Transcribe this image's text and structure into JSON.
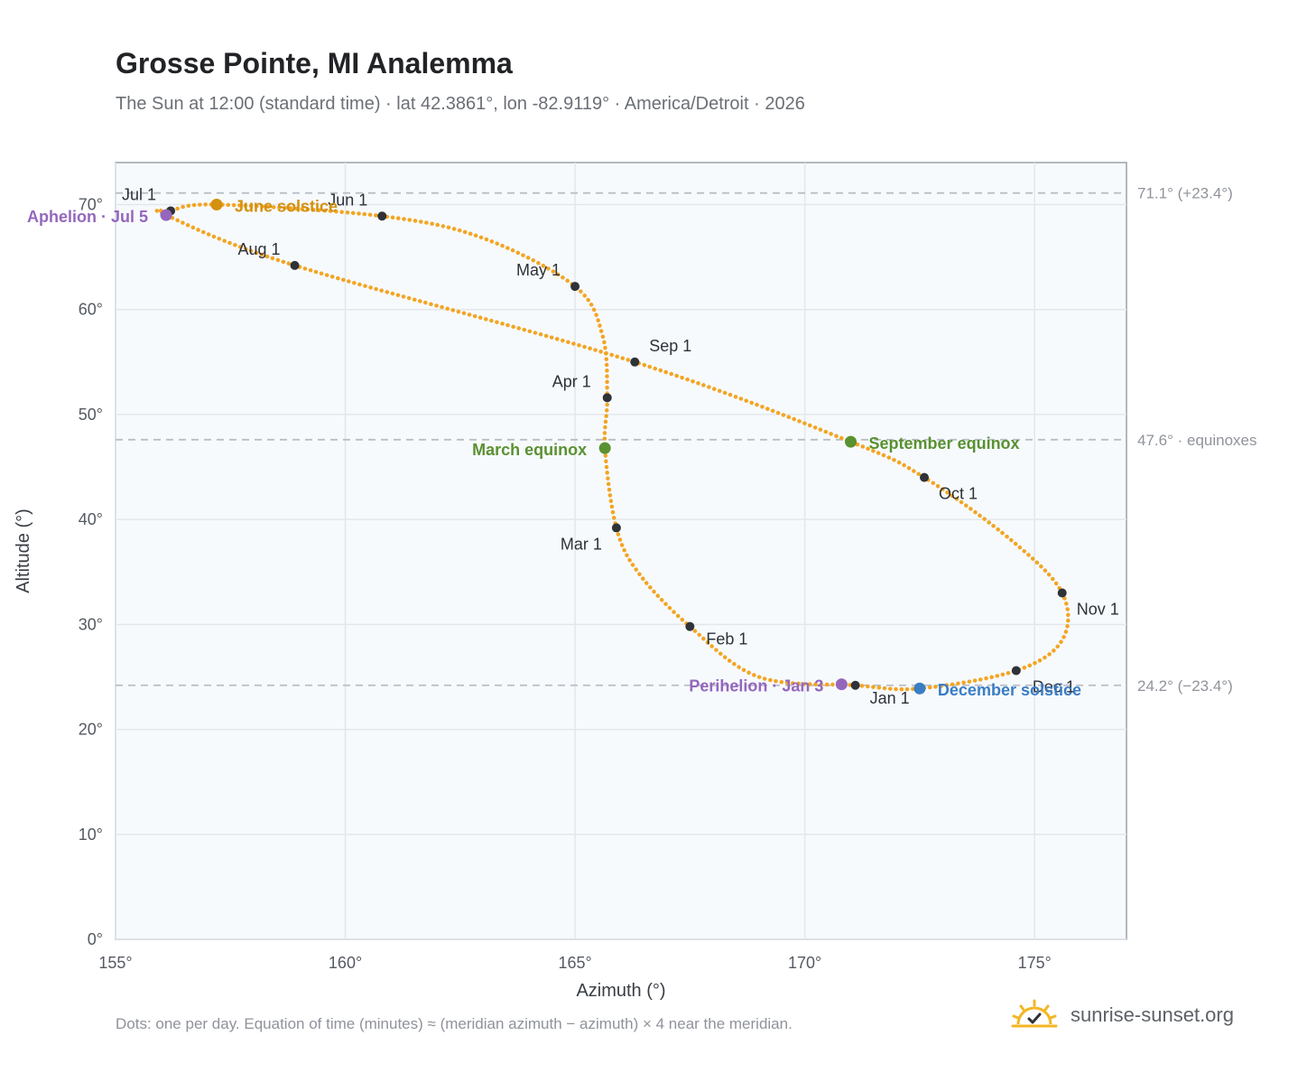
{
  "header": {
    "title": "Grosse Pointe, MI Analemma",
    "subtitle": "The Sun at 12:00 (standard time) · lat 42.3861°, lon -82.9119° · America/Detroit · 2026"
  },
  "footer": {
    "note": "Dots: one per day. Equation of time (minutes) ≈ (meridian azimuth − azimuth) × 4 near the meridian.",
    "brand": "sunrise-sunset.org",
    "brand_icon": "sun-check-icon"
  },
  "chart_data": {
    "type": "scatter",
    "title": "Grosse Pointe, MI Analemma",
    "xlabel": "Azimuth (°)",
    "ylabel": "Altitude (°)",
    "xlim": [
      155,
      177
    ],
    "ylim": [
      0,
      74
    ],
    "x_ticks": [
      155,
      160,
      165,
      170,
      175
    ],
    "x_tick_labels": [
      "155°",
      "160°",
      "165°",
      "170°",
      "175°"
    ],
    "y_ticks": [
      0,
      10,
      20,
      30,
      40,
      50,
      60,
      70
    ],
    "y_tick_labels": [
      "0°",
      "10°",
      "20°",
      "30°",
      "40°",
      "50°",
      "60°",
      "70°"
    ],
    "grid": true,
    "colors": {
      "path": "#f3a523",
      "month_marker": "#2f3237",
      "aphelion": "#9467bd",
      "perihelion": "#9467bd",
      "june_solstice": "#d4900e",
      "december_solstice": "#3a7dc4",
      "equinox": "#5a9131",
      "reference_line": "#b9bec5",
      "plot_background": "#f7fafd"
    },
    "reference_lines": [
      {
        "altitude": 71.1,
        "label": "71.1° (+23.4°)"
      },
      {
        "altitude": 47.6,
        "label": "47.6° · equinoxes"
      },
      {
        "altitude": 24.2,
        "label": "24.2° (−23.4°)"
      }
    ],
    "path_points": [
      {
        "az": 171.1,
        "alt": 24.2
      },
      {
        "az": 169.0,
        "alt": 25.0
      },
      {
        "az": 167.5,
        "alt": 29.8
      },
      {
        "az": 166.4,
        "alt": 34.8
      },
      {
        "az": 165.9,
        "alt": 39.2
      },
      {
        "az": 165.65,
        "alt": 46.8
      },
      {
        "az": 165.7,
        "alt": 51.6
      },
      {
        "az": 165.6,
        "alt": 57.5
      },
      {
        "az": 165.0,
        "alt": 62.2
      },
      {
        "az": 163.0,
        "alt": 66.8
      },
      {
        "az": 160.8,
        "alt": 68.9
      },
      {
        "az": 157.2,
        "alt": 70.0
      },
      {
        "az": 156.2,
        "alt": 69.4
      },
      {
        "az": 156.1,
        "alt": 69.0
      },
      {
        "az": 158.9,
        "alt": 64.2
      },
      {
        "az": 166.3,
        "alt": 55.0
      },
      {
        "az": 171.0,
        "alt": 47.4
      },
      {
        "az": 172.6,
        "alt": 44.0
      },
      {
        "az": 174.5,
        "alt": 38.0
      },
      {
        "az": 175.6,
        "alt": 33.0
      },
      {
        "az": 175.6,
        "alt": 28.5
      },
      {
        "az": 174.6,
        "alt": 25.6
      },
      {
        "az": 172.5,
        "alt": 23.9
      },
      {
        "az": 171.1,
        "alt": 24.2
      }
    ],
    "month_points": [
      {
        "label": "Jan 1",
        "az": 171.1,
        "alt": 24.2
      },
      {
        "label": "Feb 1",
        "az": 167.5,
        "alt": 29.8
      },
      {
        "label": "Mar 1",
        "az": 165.9,
        "alt": 39.2
      },
      {
        "label": "Apr 1",
        "az": 165.7,
        "alt": 51.6
      },
      {
        "label": "May 1",
        "az": 165.0,
        "alt": 62.2
      },
      {
        "label": "Jun 1",
        "az": 160.8,
        "alt": 68.9
      },
      {
        "label": "Jul 1",
        "az": 156.2,
        "alt": 69.4
      },
      {
        "label": "Aug 1",
        "az": 158.9,
        "alt": 64.2
      },
      {
        "label": "Sep 1",
        "az": 166.3,
        "alt": 55.0
      },
      {
        "label": "Oct 1",
        "az": 172.6,
        "alt": 44.0
      },
      {
        "label": "Nov 1",
        "az": 175.6,
        "alt": 33.0
      },
      {
        "label": "Dec 1",
        "az": 174.6,
        "alt": 25.6
      }
    ],
    "events": [
      {
        "label": "Aphelion · Jul 5",
        "az": 156.1,
        "alt": 69.0,
        "color": "#9467bd",
        "side": "left"
      },
      {
        "label": "June solstice",
        "az": 157.2,
        "alt": 70.0,
        "color": "#d4900e",
        "side": "right"
      },
      {
        "label": "March equinox",
        "az": 165.65,
        "alt": 46.8,
        "color": "#5a9131",
        "side": "left"
      },
      {
        "label": "September equinox",
        "az": 171.0,
        "alt": 47.4,
        "color": "#5a9131",
        "side": "right"
      },
      {
        "label": "Perihelion · Jan 3",
        "az": 170.8,
        "alt": 24.3,
        "color": "#9467bd",
        "side": "left"
      },
      {
        "label": "December solstice",
        "az": 172.5,
        "alt": 23.9,
        "color": "#3a7dc4",
        "side": "right"
      }
    ]
  }
}
